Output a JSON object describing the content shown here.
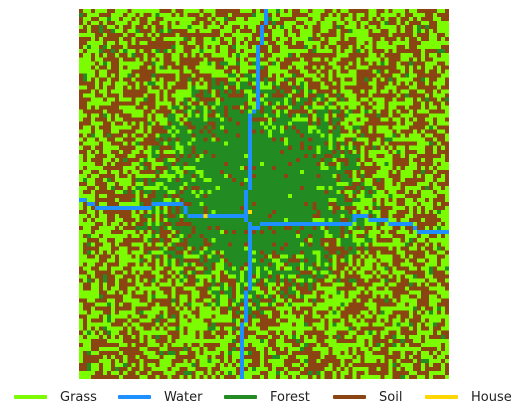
{
  "map": {
    "grid": 92,
    "colors": {
      "grass": "#7cfc00",
      "water": "#1e90ff",
      "forest": "#228b22",
      "soil": "#8b4513",
      "house": "#ffd700"
    }
  },
  "legend": {
    "items": [
      {
        "key": "grass",
        "label": "Grass",
        "color": "#7cfc00",
        "icon": "grass-line-swatch"
      },
      {
        "key": "water",
        "label": "Water",
        "color": "#1e90ff",
        "icon": "water-line-swatch"
      },
      {
        "key": "forest",
        "label": "Forest",
        "color": "#228b22",
        "icon": "forest-line-swatch"
      },
      {
        "key": "soil",
        "label": "Soil",
        "color": "#8b4513",
        "icon": "soil-line-swatch"
      },
      {
        "key": "house",
        "label": "House",
        "color": "#ffd700",
        "icon": "house-line-swatch"
      }
    ]
  }
}
